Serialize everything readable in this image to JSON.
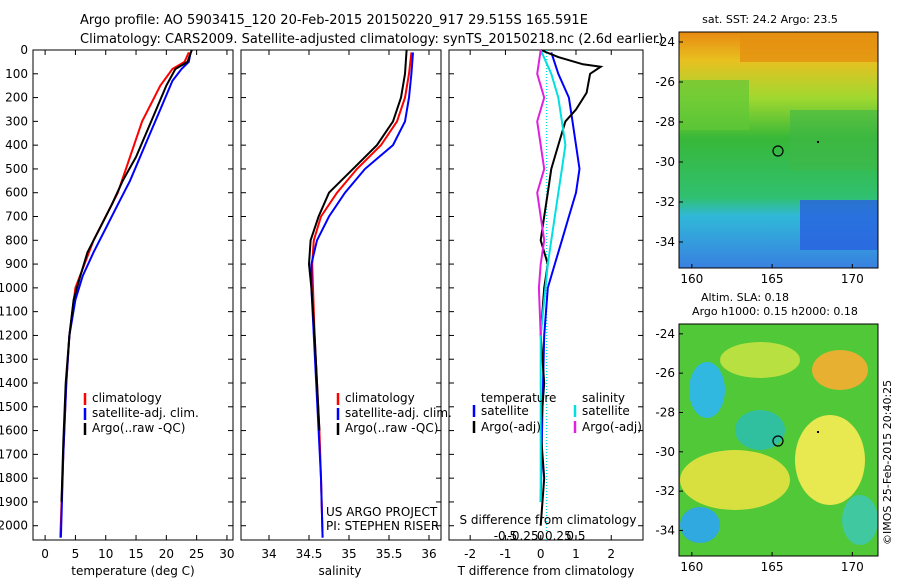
{
  "header": {
    "line1": "Argo profile: AO 5903415_120 20-Feb-2015 20150220_917 29.515S 165.591E",
    "line2": "Climatology: CARS2009. Satellite-adjusted climatology: synTS_20150218.nc (2.6d earlier)"
  },
  "side_stamp": "©IMOS 25-Feb-2015 20:40:25",
  "chart_data": [
    {
      "type": "line",
      "id": "temperature",
      "xlabel": "temperature (deg C)",
      "ylabel": "",
      "xlim": [
        -2,
        31
      ],
      "ylim": [
        2060,
        0
      ],
      "xticks": [
        0,
        5,
        10,
        15,
        20,
        25,
        30
      ],
      "yticks": [
        0,
        100,
        200,
        300,
        400,
        500,
        600,
        700,
        800,
        900,
        1000,
        1100,
        1200,
        1300,
        1400,
        1500,
        1600,
        1700,
        1800,
        1900,
        2000
      ],
      "legend": [
        "climatology",
        "satellite-adj. clim.",
        "Argo(..raw -QC)"
      ],
      "colors": {
        "climatology": "#ff0000",
        "satellite": "#0000ff",
        "argo": "#000000"
      },
      "series": [
        {
          "name": "climatology",
          "color": "#ff0000",
          "x": [
            23.7,
            23,
            21,
            19,
            16,
            14,
            12,
            10,
            8,
            6.5,
            5,
            4,
            3.5,
            3,
            2.5
          ],
          "y": [
            10,
            50,
            80,
            150,
            300,
            450,
            600,
            700,
            800,
            900,
            1000,
            1200,
            1400,
            1700,
            2050
          ]
        },
        {
          "name": "satellite-adj. clim.",
          "color": "#0000ff",
          "x": [
            24,
            23.7,
            22.5,
            21,
            19,
            16.5,
            14,
            12,
            10,
            8,
            6.2,
            5,
            4,
            3.5,
            3,
            2.6
          ],
          "y": [
            10,
            50,
            80,
            130,
            250,
            400,
            550,
            650,
            750,
            850,
            950,
            1050,
            1200,
            1400,
            1700,
            2050
          ]
        },
        {
          "name": "Argo(..raw -QC)",
          "color": "#000000",
          "x": [
            24.2,
            23.5,
            21.5,
            20,
            17.5,
            15,
            12.8,
            11,
            9,
            7,
            5.8,
            4.7,
            4,
            3.4,
            3,
            2.7
          ],
          "y": [
            0,
            50,
            80,
            150,
            300,
            450,
            550,
            650,
            750,
            850,
            950,
            1050,
            1200,
            1400,
            1650,
            1900
          ]
        }
      ]
    },
    {
      "type": "line",
      "id": "salinity",
      "xlabel": "salinity",
      "ylabel": "",
      "xlim": [
        33.65,
        36.15
      ],
      "ylim": [
        2060,
        0
      ],
      "xticks": [
        34,
        34.5,
        35,
        35.5,
        36
      ],
      "xticklabels": [
        "34",
        "34.5",
        "35",
        "35.5",
        "36"
      ],
      "legend": [
        "climatology",
        "satellite-adj. clim.",
        "Argo(..raw -QC)"
      ],
      "annotations": [
        "US ARGO PROJECT",
        "PI: STEPHEN RISER"
      ],
      "series": [
        {
          "name": "climatology",
          "color": "#ff0000",
          "x": [
            35.78,
            35.75,
            35.7,
            35.6,
            35.4,
            35.1,
            34.85,
            34.65,
            34.56,
            34.54,
            34.55,
            34.57,
            34.6,
            34.63,
            34.65,
            34.67
          ],
          "y": [
            10,
            100,
            200,
            300,
            400,
            500,
            600,
            700,
            800,
            900,
            1000,
            1200,
            1400,
            1600,
            1800,
            2050
          ]
        },
        {
          "name": "satellite-adj. clim.",
          "color": "#0000ff",
          "x": [
            35.8,
            35.78,
            35.75,
            35.7,
            35.55,
            35.2,
            34.95,
            34.75,
            34.6,
            34.53,
            34.53,
            34.56,
            34.59,
            34.62,
            34.65,
            34.67
          ],
          "y": [
            10,
            100,
            200,
            300,
            400,
            500,
            600,
            700,
            800,
            900,
            1000,
            1200,
            1400,
            1600,
            1800,
            2050
          ]
        },
        {
          "name": "Argo(..raw -QC)",
          "color": "#000000",
          "x": [
            35.72,
            35.7,
            35.65,
            35.55,
            35.35,
            35.05,
            34.75,
            34.62,
            34.52,
            34.5,
            34.53,
            34.57,
            34.6,
            34.63
          ],
          "y": [
            0,
            100,
            200,
            300,
            400,
            500,
            600,
            700,
            800,
            900,
            1000,
            1200,
            1400,
            1600
          ]
        }
      ]
    },
    {
      "type": "line",
      "id": "differences",
      "xlabel": "T difference from climatology",
      "xlabel_top": "S difference from climatology",
      "xlim": [
        -2.6,
        2.9
      ],
      "ylim": [
        2060,
        0
      ],
      "xticks": [
        -2,
        -1,
        0,
        1,
        2
      ],
      "s_ticklabels": [
        "-0.5",
        "-0.25",
        "0",
        "0.25",
        "0.5"
      ],
      "legend_left_title": "temperature",
      "legend_right_title": "salinity",
      "legend": [
        "satellite",
        "Argo(-adj)",
        "satellite",
        "Argo(-adj)"
      ],
      "series": [
        {
          "name": "temperature satellite",
          "color": "#0000ff",
          "x": [
            0.3,
            0.5,
            0.8,
            0.9,
            1.0,
            1.1,
            1.0,
            0.8,
            0.6,
            0.4,
            0.2,
            0.1,
            0.05,
            0
          ],
          "y": [
            10,
            100,
            200,
            300,
            400,
            500,
            600,
            700,
            800,
            900,
            1000,
            1200,
            1500,
            1900
          ]
        },
        {
          "name": "temperature Argo(-adj)",
          "color": "#000000",
          "x": [
            0,
            0.5,
            1.2,
            1.7,
            1.4,
            1.3,
            1.0,
            0.7,
            0.5,
            0.3,
            0.2,
            0.1,
            0,
            0.2,
            0.1,
            0,
            0.1,
            0,
            0.1,
            0
          ],
          "y": [
            0,
            30,
            60,
            70,
            100,
            180,
            250,
            300,
            400,
            500,
            600,
            700,
            800,
            900,
            1000,
            1200,
            1400,
            1600,
            1800,
            2000
          ]
        },
        {
          "name": "salinity satellite",
          "color": "#00e0e0",
          "x": [
            0,
            0.3,
            0.5,
            0.6,
            0.7,
            0.6,
            0.4,
            0.2,
            0,
            0
          ],
          "y": [
            0,
            100,
            200,
            300,
            400,
            500,
            700,
            900,
            1200,
            1900
          ]
        },
        {
          "name": "salinity Argo(-adj)",
          "color": "#e020e0",
          "x": [
            0,
            -0.1,
            0.1,
            -0.1,
            0,
            0.1,
            -0.1,
            0,
            0.1,
            0,
            -0.05,
            0
          ],
          "y": [
            0,
            100,
            200,
            300,
            400,
            500,
            600,
            700,
            800,
            900,
            1000,
            1200
          ]
        }
      ]
    },
    {
      "type": "heatmap",
      "id": "sst_map",
      "title": "sat. SST: 24.2  Argo: 23.5",
      "xticks": [
        160,
        165,
        170
      ],
      "yticks": [
        -24,
        -26,
        -28,
        -30,
        -32,
        -34
      ],
      "xlim": [
        159.2,
        171.6
      ],
      "ylim": [
        -35.3,
        -23.5
      ],
      "marker": {
        "lon": 165.591,
        "lat": -29.515
      }
    },
    {
      "type": "heatmap",
      "id": "sla_map",
      "title": "Altim. SLA: 0.18",
      "subtitle": "Argo h1000: 0.15 h2000: 0.18",
      "xticks": [
        160,
        165,
        170
      ],
      "yticks": [
        -24,
        -26,
        -28,
        -30,
        -32,
        -34
      ],
      "xlim": [
        159.2,
        171.6
      ],
      "ylim": [
        -35.3,
        -23.5
      ],
      "marker": {
        "lon": 165.591,
        "lat": -29.515
      }
    }
  ]
}
